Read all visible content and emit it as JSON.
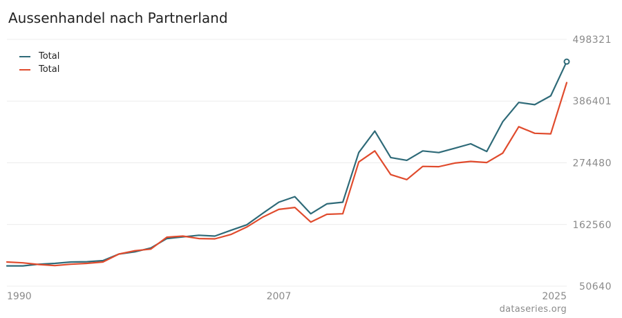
{
  "chart_data": {
    "type": "line",
    "title": "Aussenhandel nach Partnerland",
    "x": [
      1990,
      1991,
      1992,
      1993,
      1994,
      1995,
      1996,
      1997,
      1998,
      1999,
      2000,
      2001,
      2002,
      2003,
      2004,
      2005,
      2006,
      2007,
      2008,
      2009,
      2010,
      2011,
      2012,
      2013,
      2014,
      2015,
      2016,
      2017,
      2018,
      2019,
      2020,
      2021,
      2022,
      2023,
      2024,
      2025
    ],
    "series": [
      {
        "name": "Total",
        "color": "#2e6a78",
        "values": [
          87500,
          87500,
          90500,
          92000,
          94500,
          95000,
          97000,
          109000,
          113000,
          120000,
          137000,
          140000,
          143000,
          141500,
          152000,
          162000,
          183000,
          203000,
          213000,
          182000,
          200000,
          203000,
          293000,
          332000,
          284000,
          279000,
          296000,
          293000,
          301000,
          309000,
          295000,
          349000,
          384000,
          380000,
          396000,
          458000
        ]
      },
      {
        "name": "Total",
        "color": "#e04b2d",
        "values": [
          94500,
          93000,
          90000,
          88000,
          90500,
          92000,
          94500,
          109000,
          115000,
          118000,
          139500,
          141500,
          137000,
          136500,
          144500,
          158000,
          176000,
          190000,
          193500,
          167000,
          181000,
          182000,
          276000,
          296000,
          253000,
          244000,
          268000,
          267500,
          274000,
          277000,
          275000,
          292000,
          340000,
          328000,
          327000,
          420000
        ]
      }
    ],
    "y_ticks": [
      "498321",
      "386401",
      "274480",
      "162560",
      "50640"
    ],
    "x_ticks": [
      "1990",
      "2007",
      "2025"
    ],
    "ylim": [
      50640,
      498321
    ],
    "xlim": [
      1990,
      2025
    ],
    "legend_position": "top-left",
    "grid": true
  },
  "credit": "dataseries.org"
}
